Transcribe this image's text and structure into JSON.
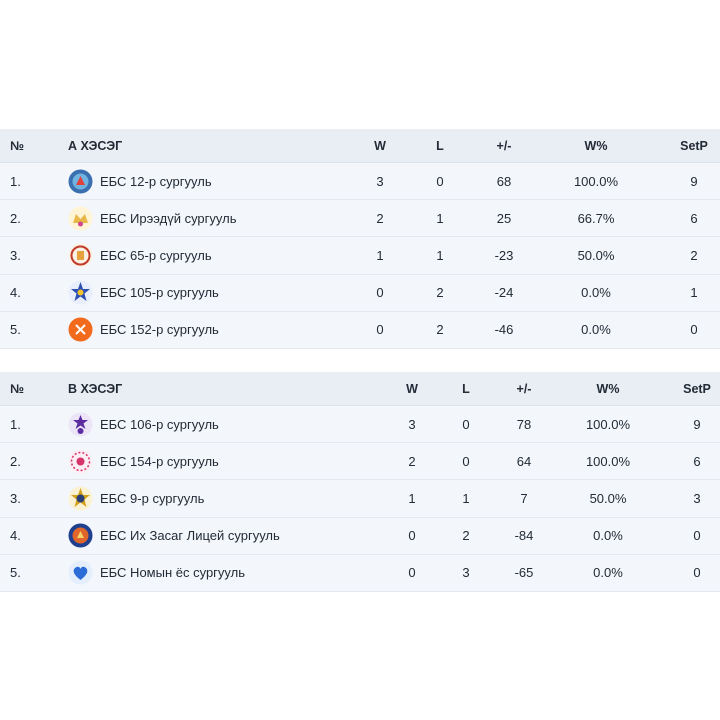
{
  "groups": [
    {
      "id": "a",
      "headers": {
        "rank": "№",
        "group": "А ХЭСЭГ",
        "w": "W",
        "l": "L",
        "diff": "+/-",
        "wpct": "W%",
        "setp": "SetP"
      },
      "rows": [
        {
          "rank": "1.",
          "team": "ЕБС 12-р сургууль",
          "logo_icon": "school-12-logo",
          "logo_color": "#3a6fb0",
          "w": "3",
          "l": "0",
          "diff": "68",
          "wpct": "100.0%",
          "setp": "9"
        },
        {
          "rank": "2.",
          "team": "ЕБС Ирээдүй сургууль",
          "logo_icon": "ireedui-school-logo",
          "logo_color": "#e8b84a",
          "w": "2",
          "l": "1",
          "diff": "25",
          "wpct": "66.7%",
          "setp": "6"
        },
        {
          "rank": "3.",
          "team": "ЕБС 65-р сургууль",
          "logo_icon": "school-65-logo",
          "logo_color": "#c0392b",
          "w": "1",
          "l": "1",
          "diff": "-23",
          "wpct": "50.0%",
          "setp": "2"
        },
        {
          "rank": "4.",
          "team": "ЕБС 105-р сургууль",
          "logo_icon": "school-105-logo",
          "logo_color": "#2c4fb3",
          "w": "0",
          "l": "2",
          "diff": "-24",
          "wpct": "0.0%",
          "setp": "1"
        },
        {
          "rank": "5.",
          "team": "ЕБС 152-р сургууль",
          "logo_icon": "school-152-logo",
          "logo_color": "#f26a1b",
          "w": "0",
          "l": "2",
          "diff": "-46",
          "wpct": "0.0%",
          "setp": "0"
        }
      ]
    },
    {
      "id": "b",
      "headers": {
        "rank": "№",
        "group": "В ХЭСЭГ",
        "w": "W",
        "l": "L",
        "diff": "+/-",
        "wpct": "W%",
        "setp": "SetP"
      },
      "rows": [
        {
          "rank": "1.",
          "team": "ЕБС 106-р сургууль",
          "logo_icon": "school-106-logo",
          "logo_color": "#5b2ca0",
          "w": "3",
          "l": "0",
          "diff": "78",
          "wpct": "100.0%",
          "setp": "9"
        },
        {
          "rank": "2.",
          "team": "ЕБС 154-р сургууль",
          "logo_icon": "school-154-logo",
          "logo_color": "#d6336c",
          "w": "2",
          "l": "0",
          "diff": "64",
          "wpct": "100.0%",
          "setp": "6"
        },
        {
          "rank": "3.",
          "team": "ЕБС 9-р сургууль",
          "logo_icon": "school-9-logo",
          "logo_color": "#d4a017",
          "w": "1",
          "l": "1",
          "diff": "7",
          "wpct": "50.0%",
          "setp": "3"
        },
        {
          "rank": "4.",
          "team": "ЕБС Их Засаг Лицей сургууль",
          "logo_icon": "ikh-zasag-lyceum-logo",
          "logo_color": "#1f3f8f",
          "w": "0",
          "l": "2",
          "diff": "-84",
          "wpct": "0.0%",
          "setp": "0"
        },
        {
          "rank": "5.",
          "team": "ЕБС Номын ёс сургууль",
          "logo_icon": "nomyn-yos-school-logo",
          "logo_color": "#2b6cd6",
          "w": "0",
          "l": "3",
          "diff": "-65",
          "wpct": "0.0%",
          "setp": "0"
        }
      ]
    }
  ]
}
